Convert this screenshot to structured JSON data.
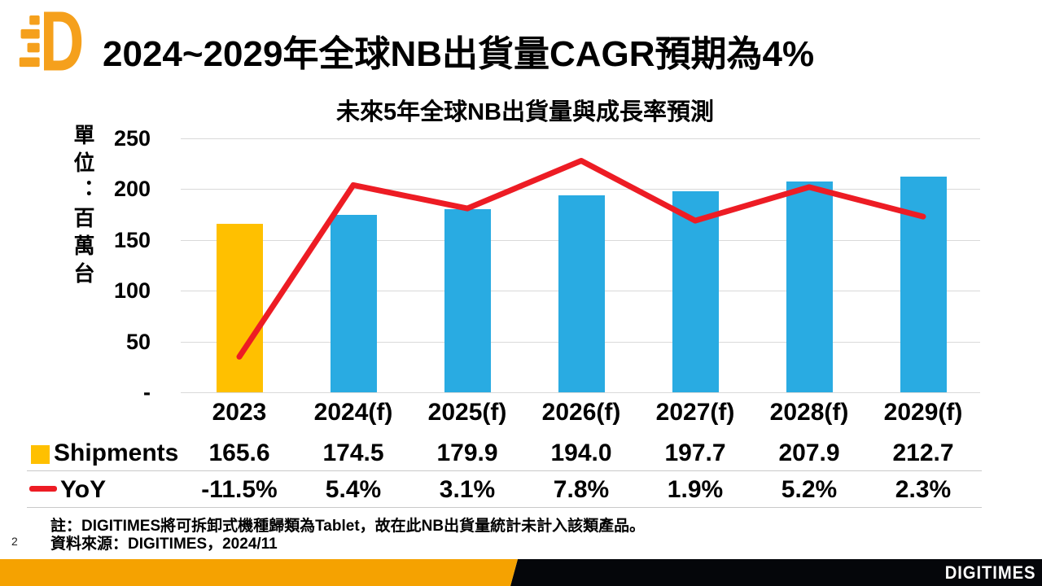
{
  "page": {
    "number": "2"
  },
  "header": {
    "title": "2024~2029年全球NB出貨量CAGR預期為4%",
    "logo_icon": "digitimes-d-logo"
  },
  "colors": {
    "accent_orange": "#F5A201",
    "bar_gold": "#FFC000",
    "bar_blue": "#29ABE2",
    "line_red": "#ED1C24",
    "footer_dark": "#05060A",
    "gridline": "#D9D9D9"
  },
  "chart_data": {
    "type": "bar+line",
    "title": "未來5年全球NB出貨量與成長率預測",
    "unit_label": "單位：百萬台",
    "categories": [
      "2023",
      "2024(f)",
      "2025(f)",
      "2026(f)",
      "2027(f)",
      "2028(f)",
      "2029(f)"
    ],
    "series": [
      {
        "name": "Shipments",
        "type": "bar",
        "values": [
          165.6,
          174.5,
          179.9,
          194.0,
          197.7,
          207.9,
          212.7
        ],
        "display": [
          "165.6",
          "174.5",
          "179.9",
          "194.0",
          "197.7",
          "207.9",
          "212.7"
        ],
        "color_first": "#FFC000",
        "color_rest": "#29ABE2"
      },
      {
        "name": "YoY",
        "type": "line",
        "values": [
          -11.5,
          5.4,
          3.1,
          7.8,
          1.9,
          5.2,
          2.3
        ],
        "display": [
          "-11.5%",
          "5.4%",
          "3.1%",
          "7.8%",
          "1.9%",
          "5.2%",
          "2.3%"
        ],
        "color": "#ED1C24"
      }
    ],
    "y_ticks": [
      "250",
      "200",
      "150",
      "100",
      "50",
      "-"
    ],
    "y_tick_values": [
      250,
      200,
      150,
      100,
      50,
      0
    ],
    "ylabel": "單位：百萬台",
    "ylim": [
      0,
      250
    ],
    "y2lim": [
      -15,
      10
    ],
    "y2_axis_visible": false,
    "grid": true,
    "legend_position": "table-left"
  },
  "footnotes": {
    "note": "註：DIGITIMES將可拆卸式機種歸類為Tablet，故在此NB出貨量統計未計入該類產品。",
    "source": "資料來源：DIGITIMES，2024/11"
  },
  "footer": {
    "brand": "DIGITIMES"
  }
}
